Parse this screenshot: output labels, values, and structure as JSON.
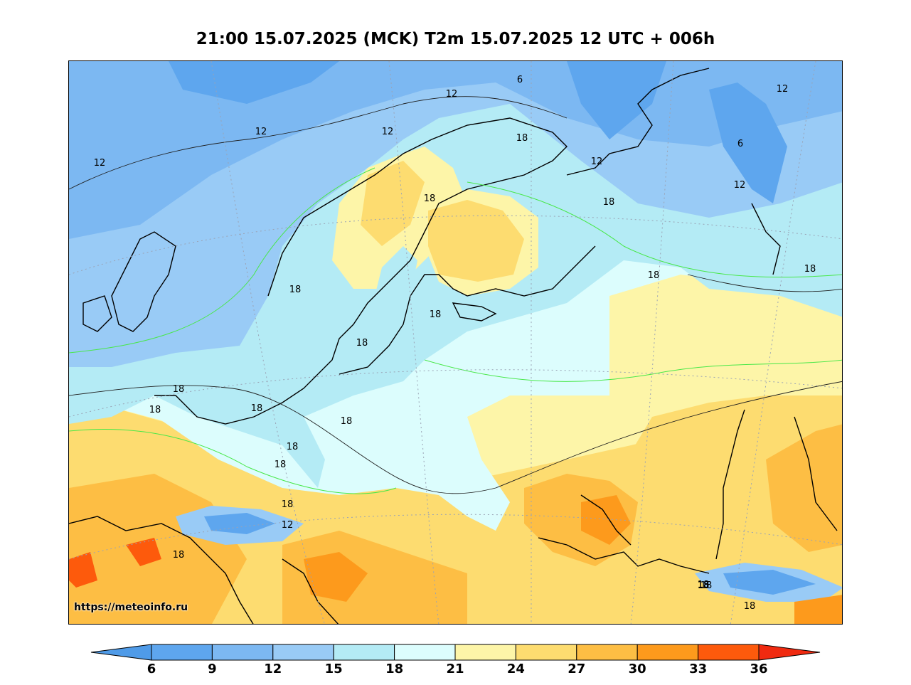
{
  "title": "21:00 15.07.2025 (MCK) T2m 15.07.2025 12 UTC + 006h",
  "source_link": "https://meteoinfo.ru",
  "map": {
    "contour_labels": [
      "6",
      "12",
      "12",
      "12",
      "12",
      "12",
      "12",
      "6",
      "12",
      "18",
      "18",
      "18",
      "18",
      "18",
      "18",
      "18",
      "18",
      "18",
      "18",
      "18",
      "18",
      "18",
      "18",
      "18",
      "18",
      "18",
      "12",
      "18",
      "18",
      "18"
    ]
  },
  "colorbar": {
    "ticks": [
      "6",
      "9",
      "12",
      "15",
      "18",
      "21",
      "24",
      "27",
      "30",
      "33",
      "36"
    ],
    "colors": [
      "#4f9be8",
      "#5ea6ee",
      "#7cb8f2",
      "#99cbf6",
      "#b4ebf5",
      "#dcfdfd",
      "#fdf5a8",
      "#fddc70",
      "#fdbe44",
      "#fd9a1c",
      "#fd5a0c",
      "#f02a10"
    ]
  }
}
